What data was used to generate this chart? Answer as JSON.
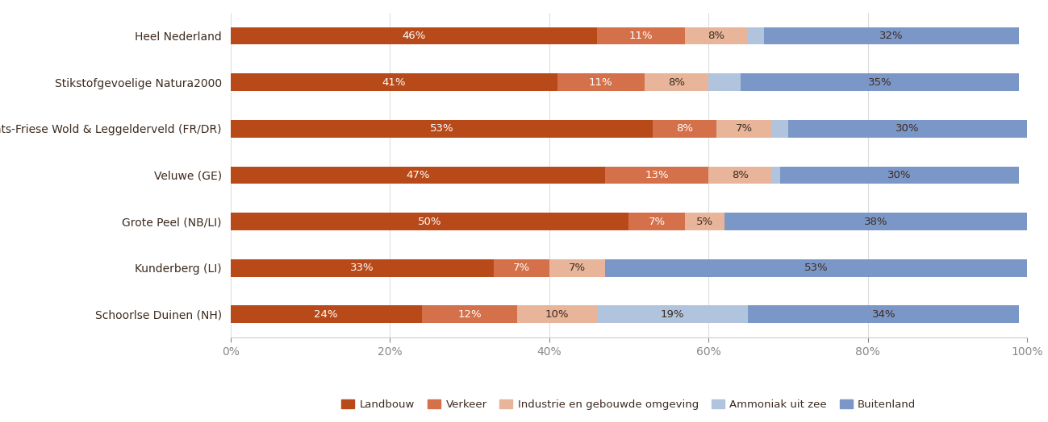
{
  "categories": [
    "Heel Nederland",
    "Stikstofgevoelige Natura2000",
    "Drents-Friese Wold & Leggelderveld (FR/DR)",
    "Veluwe (GE)",
    "Grote Peel (NB/LI)",
    "Kunderberg (LI)",
    "Schoorlse Duinen (NH)"
  ],
  "series": {
    "Landbouw": [
      46,
      41,
      53,
      47,
      50,
      33,
      24
    ],
    "Verkeer": [
      11,
      11,
      8,
      13,
      7,
      7,
      12
    ],
    "Industrie en gebouwde omgeving": [
      8,
      8,
      7,
      8,
      5,
      7,
      10
    ],
    "Ammoniak uit zee": [
      2,
      4,
      2,
      1,
      0,
      0,
      19
    ],
    "Buitenland": [
      32,
      35,
      30,
      30,
      38,
      53,
      34
    ]
  },
  "colors": {
    "Landbouw": "#b84a1a",
    "Verkeer": "#d4714a",
    "Industrie en gebouwde omgeving": "#e8b49a",
    "Ammoniak uit zee": "#b0c4de",
    "Buitenland": "#7b97c8"
  },
  "legend_order": [
    "Landbouw",
    "Verkeer",
    "Industrie en gebouwde omgeving",
    "Ammoniak uit zee",
    "Buitenland"
  ],
  "bar_height": 0.38,
  "text_color_dark": "#3d2b1f",
  "text_color_white": "#ffffff",
  "background_color": "#ffffff",
  "label_fontsize": 9.5,
  "tick_fontsize": 10,
  "ytick_fontsize": 10
}
